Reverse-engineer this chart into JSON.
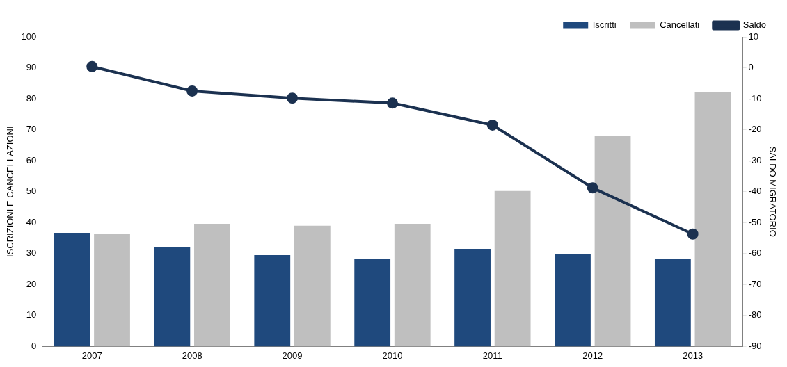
{
  "chart_data": {
    "type": "bar",
    "categories": [
      "2007",
      "2008",
      "2009",
      "2010",
      "2011",
      "2012",
      "2013"
    ],
    "series": [
      {
        "name": "Iscritti",
        "color": "#1f497d",
        "values": [
          36.7,
          32.2,
          29.5,
          28.2,
          31.5,
          29.7,
          28.4
        ]
      },
      {
        "name": "Cancellati",
        "color": "#bfbfbf",
        "values": [
          36.3,
          39.6,
          39.0,
          39.6,
          50.2,
          68.0,
          82.2
        ]
      },
      {
        "name": "Saldo",
        "type": "line",
        "axis": "y2",
        "color": "#1b3150",
        "marker": "circle",
        "values": [
          0.4,
          -7.5,
          -9.8,
          -11.4,
          -18.5,
          -38.8,
          -53.7
        ]
      }
    ],
    "ylabel": "ISCRIZIONI E CANCELLAZIONI",
    "y2label": "SALDO MIGRATORIO",
    "ylim": [
      0,
      100
    ],
    "yticks": [
      0,
      10,
      20,
      30,
      40,
      50,
      60,
      70,
      80,
      90,
      100
    ],
    "y2lim": [
      -90,
      10
    ],
    "y2ticks": [
      -90,
      -80,
      -70,
      -60,
      -50,
      -40,
      -30,
      -20,
      -10,
      0,
      10
    ],
    "grid": false,
    "legend": "top right"
  }
}
